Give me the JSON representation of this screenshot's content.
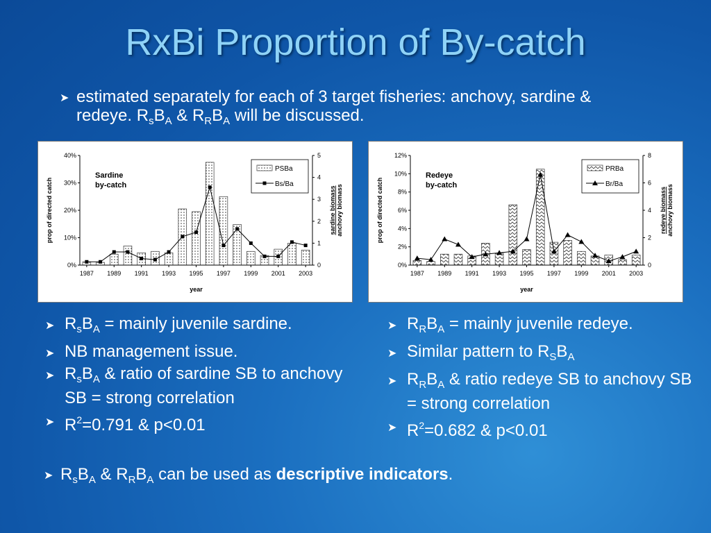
{
  "slide": {
    "title": "RxBi Proportion of By-catch",
    "intro": {
      "text_a": "estimated separately for each of 3 target fisheries: anchovy, sardine & redeye. R",
      "s1": "s",
      "b1": "B",
      "a1": "A",
      "amp": " & R",
      "r2": "R",
      "b2": "B",
      "a2": "A",
      "tail": " will be discussed."
    },
    "left_bullets": [
      {
        "p0": "R",
        "s0": "s",
        "p1": "B",
        "s1": "A",
        "p2": " = mainly juvenile sardine."
      },
      {
        "p0": "NB management issue."
      },
      {
        "p0": "R",
        "s0": "s",
        "p1": "B",
        "s1": "A",
        "p2": " & ratio of sardine SB to anchovy SB = strong correlation"
      },
      {
        "p0": "R",
        "sup": "2",
        "p2": "=0.791 & p<0.01"
      }
    ],
    "right_bullets": [
      {
        "p0": "R",
        "s0": "R",
        "p1": "B",
        "s1": "A",
        "p2": " = mainly juvenile redeye."
      },
      {
        "p0": "Similar pattern to R",
        "s0": "S",
        "p1": "B",
        "s1": "A"
      },
      {
        "p0": "R",
        "s0": "R",
        "p1": "B",
        "s1": "A",
        "p2": " & ratio redeye SB to anchovy SB = strong correlation"
      },
      {
        "p0": "R",
        "sup": "2",
        "p2": "=0.682 & p<0.01"
      }
    ],
    "bottom": {
      "p0": "R",
      "s0": "s",
      "p1": "B",
      "s1": "A",
      "p2": " & R",
      "s2": "R",
      "p3": "B",
      "s3": "A",
      "p4": " can be used as ",
      "bold": "descriptive indicators",
      "p5": "."
    }
  },
  "chart_data": [
    {
      "type": "bar",
      "annotation": [
        "Sardine",
        "by-catch"
      ],
      "xlabel": "year",
      "ylabel": "prop of directed catch",
      "y2label": [
        "sardine biomass",
        "anchovy biomass"
      ],
      "x": [
        1987,
        1988,
        1989,
        1990,
        1991,
        1992,
        1993,
        1994,
        1995,
        1996,
        1997,
        1998,
        1999,
        2000,
        2001,
        2002,
        2003
      ],
      "x_ticks": [
        "1987",
        "1989",
        "1991",
        "1993",
        "1995",
        "1997",
        "1999",
        "2001",
        "2003"
      ],
      "ylim": [
        0,
        0.4
      ],
      "y_ticks": [
        "0%",
        "10%",
        "20%",
        "30%",
        "40%"
      ],
      "y2lim": [
        0,
        5
      ],
      "y2_ticks": [
        "0",
        "1",
        "2",
        "3",
        "4",
        "5"
      ],
      "series": [
        {
          "name": "PSBa",
          "kind": "bar",
          "pattern": "dots",
          "values": [
            0.012,
            0.01,
            0.04,
            0.07,
            0.045,
            0.05,
            0.045,
            0.205,
            0.195,
            0.375,
            0.25,
            0.148,
            0.05,
            0.035,
            0.058,
            0.08,
            0.055
          ]
        },
        {
          "name": "Bs/Ba",
          "kind": "line",
          "marker": "square",
          "values": [
            0.15,
            0.15,
            0.6,
            0.6,
            0.3,
            0.25,
            0.6,
            1.3,
            1.5,
            3.55,
            0.9,
            1.65,
            1.0,
            0.4,
            0.4,
            1.05,
            0.9
          ]
        }
      ],
      "legend": "top-right",
      "grid": false
    },
    {
      "type": "bar",
      "annotation": [
        "Redeye",
        "by-catch"
      ],
      "xlabel": "year",
      "ylabel": "prop of directed catch",
      "y2label": [
        "redeye biomass",
        "anchovy biomass"
      ],
      "x": [
        1987,
        1988,
        1989,
        1990,
        1991,
        1992,
        1993,
        1994,
        1995,
        1996,
        1997,
        1998,
        1999,
        2000,
        2001,
        2002,
        2003
      ],
      "x_ticks": [
        "1987",
        "1989",
        "1991",
        "1993",
        "1995",
        "1997",
        "1999",
        "2001",
        "2003"
      ],
      "ylim": [
        0,
        0.12
      ],
      "y_ticks": [
        "0%",
        "2%",
        "4%",
        "6%",
        "8%",
        "10%",
        "12%"
      ],
      "y2lim": [
        0,
        8
      ],
      "y2_ticks": [
        "0",
        "2",
        "4",
        "6",
        "8"
      ],
      "series": [
        {
          "name": "PRBa",
          "kind": "bar",
          "pattern": "zigzag",
          "values": [
            0.005,
            0.004,
            0.012,
            0.012,
            0.01,
            0.024,
            0.013,
            0.066,
            0.017,
            0.105,
            0.025,
            0.027,
            0.015,
            0.01,
            0.011,
            0.006,
            0.011
          ]
        },
        {
          "name": "Br/Ba",
          "kind": "line",
          "marker": "triangle",
          "values": [
            0.5,
            0.4,
            1.9,
            1.5,
            0.6,
            0.8,
            0.9,
            1.0,
            1.9,
            6.6,
            1.0,
            2.2,
            1.7,
            0.7,
            0.3,
            0.6,
            1.0
          ]
        }
      ],
      "legend": "top-right",
      "grid": false
    }
  ]
}
